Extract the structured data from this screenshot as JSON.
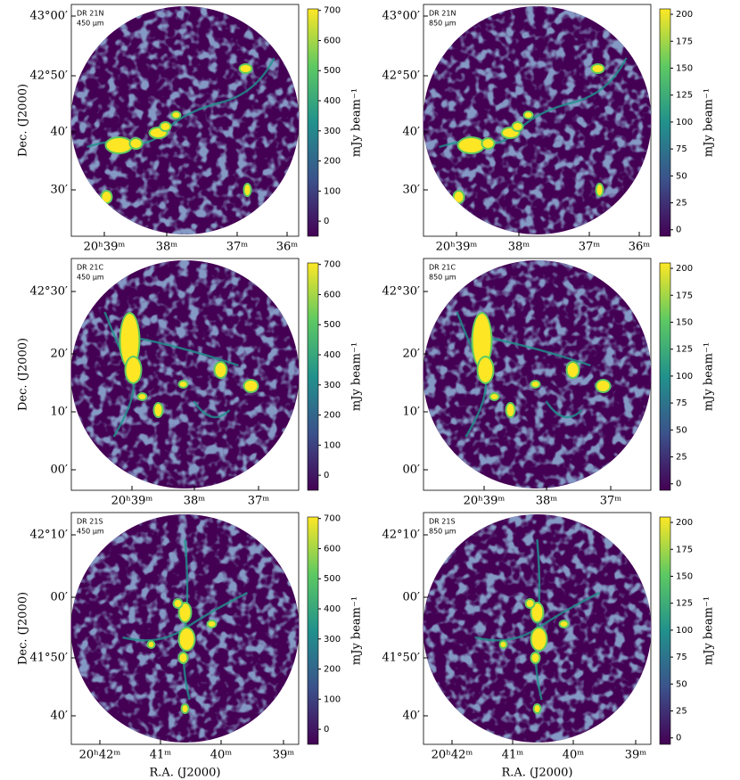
{
  "figure": {
    "y_axis_label": "Dec. (J2000)",
    "x_axis_label": "R.A. (J2000)",
    "colorbar_label": "mJy beam⁻¹",
    "rows": [
      {
        "region": "DR 21N",
        "yticks": [
          "43°00′",
          "42°50′",
          "40′",
          "30′"
        ],
        "xticks": [
          "20ʰ39ᵐ",
          "38ᵐ",
          "37ᵐ",
          "36ᵐ"
        ],
        "panels": [
          {
            "wavelength": "450 μm",
            "colorbar_range": [
              -50,
              705
            ],
            "colorbar_ticks": [
              0,
              100,
              200,
              300,
              400,
              500,
              600,
              700
            ]
          },
          {
            "wavelength": "850 μm",
            "colorbar_range": [
              -6,
              205
            ],
            "colorbar_ticks": [
              0,
              25,
              50,
              75,
              100,
              125,
              150,
              175,
              200
            ]
          }
        ]
      },
      {
        "region": "DR 21C",
        "yticks": [
          "42°30′",
          "20′",
          "10′",
          "00′"
        ],
        "xticks": [
          "20ʰ39ᵐ",
          "38ᵐ",
          "37ᵐ"
        ],
        "panels": [
          {
            "wavelength": "450 μm",
            "colorbar_range": [
              -50,
              705
            ],
            "colorbar_ticks": [
              0,
              100,
              200,
              300,
              400,
              500,
              600,
              700
            ]
          },
          {
            "wavelength": "850 μm",
            "colorbar_range": [
              -6,
              205
            ],
            "colorbar_ticks": [
              0,
              25,
              50,
              75,
              100,
              125,
              150,
              175,
              200
            ]
          }
        ]
      },
      {
        "region": "DR 21S",
        "yticks": [
          "42°10′",
          "00′",
          "41°50′",
          "40′"
        ],
        "xticks": [
          "20ʰ42ᵐ",
          "41ᵐ",
          "40ᵐ",
          "39ᵐ"
        ],
        "panels": [
          {
            "wavelength": "450 μm",
            "colorbar_range": [
              -50,
              705
            ],
            "colorbar_ticks": [
              0,
              100,
              200,
              300,
              400,
              500,
              600,
              700
            ]
          },
          {
            "wavelength": "850 μm",
            "colorbar_range": [
              -6,
              205
            ],
            "colorbar_ticks": [
              0,
              25,
              50,
              75,
              100,
              125,
              150,
              175,
              200
            ]
          }
        ]
      }
    ]
  }
}
